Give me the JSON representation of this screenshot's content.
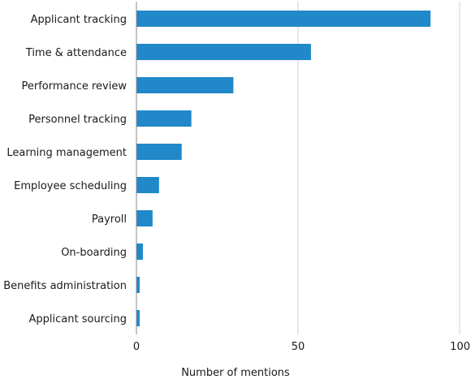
{
  "chart_data": {
    "type": "bar",
    "orientation": "horizontal",
    "categories": [
      "Applicant tracking",
      "Time & attendance",
      "Performance review",
      "Personnel tracking",
      "Learning management",
      "Employee scheduling",
      "Payroll",
      "On-boarding",
      "Benefits administration",
      "Applicant sourcing"
    ],
    "values": [
      91,
      54,
      30,
      17,
      14,
      7,
      5,
      2,
      1,
      1
    ],
    "xlabel": "Number of mentions",
    "ylabel": "",
    "xlim": [
      0,
      100
    ],
    "xticks": [
      "0",
      "50",
      "100"
    ],
    "grid": true,
    "bar_color": "#2188c9"
  }
}
